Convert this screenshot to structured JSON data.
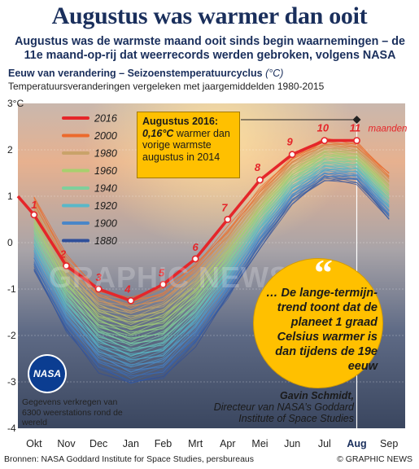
{
  "title": "Augustus was warmer dan ooit",
  "subtitle": "Augustus was de warmste maand ooit sinds begin waarnemingen – de 11e maand-op-rij dat weerrecords werden gebroken, volgens NASA",
  "section_title": "Eeuw van verandering – Seizoenstemperatuurcyclus",
  "section_unit": "(°C)",
  "section_desc": "Temperatuursveranderingen vergeleken met jaargemiddelden 1980-2015",
  "unit_label": "3°C",
  "callout": {
    "title": "Augustus 2016:",
    "value": "0,16°C",
    "rest": " warmer dan vorige warmste augustus in 2014"
  },
  "quote": {
    "mark": "“",
    "text": "… De lange-termijn-trend toont dat de planeet 1 graad Celsius warmer is dan tijdens de 19e eeuw",
    "speaker": "Gavin Schmidt,",
    "role": "Directeur van NASA’s Goddard Institute of Space Studies"
  },
  "nasa": {
    "logo_text": "NASA",
    "note": "Gegevens verkregen van 6300 weerstations rond de wereld"
  },
  "maanden_label": "maanden",
  "source": "Bronnen: NASA Goddard Institute for Space Studies, persbureaus",
  "credit": "© GRAPHIC NEWS",
  "watermark": "GRAPHIC NEWS",
  "colors": {
    "highlight": "#e5262a",
    "accent": "#ffc000",
    "navy": "#1a2f5c"
  },
  "chart_data": {
    "type": "line",
    "categories": [
      "Okt",
      "Nov",
      "Dec",
      "Jan",
      "Feb",
      "Mrt",
      "Apr",
      "Mei",
      "Jun",
      "Jul",
      "Aug",
      "Sep"
    ],
    "highlight_category": "Aug",
    "ylim": [
      -4,
      3
    ],
    "yticks": [
      "3°C",
      "2",
      "1",
      "0",
      "-1",
      "-2",
      "-3",
      "-4"
    ],
    "legend": [
      "2016",
      "2000",
      "1980",
      "1960",
      "1940",
      "1920",
      "1900",
      "1880"
    ],
    "legend_colors": [
      "#e5262a",
      "#ec6a2c",
      "#c9a36a",
      "#a8cf6e",
      "#7fcf9c",
      "#58b8c8",
      "#4a86c8",
      "#2f4f9a"
    ],
    "series_2016": {
      "name": "2016",
      "x": [
        -0.5,
        0,
        1,
        2,
        3,
        4,
        5,
        6,
        7,
        8,
        9,
        10
      ],
      "y": [
        1.0,
        0.6,
        -0.5,
        -1.0,
        -1.25,
        -0.9,
        -0.35,
        0.5,
        1.35,
        1.9,
        2.2,
        2.2
      ],
      "labels": [
        "",
        "1",
        "2",
        "3",
        "4",
        "5",
        "6",
        "7",
        "8",
        "9",
        "10",
        "11"
      ]
    },
    "historical_range": {
      "months": [
        "Okt",
        "Nov",
        "Dec",
        "Jan",
        "Feb",
        "Mrt",
        "Apr",
        "Mei",
        "Jun",
        "Jul",
        "Aug",
        "Sep"
      ],
      "top": [
        1.0,
        -0.3,
        -1.0,
        -1.2,
        -1.0,
        -0.45,
        0.3,
        1.15,
        1.85,
        2.2,
        2.15,
        1.5
      ],
      "bottom": [
        -0.6,
        -1.9,
        -2.75,
        -3.05,
        -2.9,
        -2.2,
        -1.2,
        -0.1,
        0.85,
        1.35,
        1.3,
        0.5
      ]
    }
  }
}
